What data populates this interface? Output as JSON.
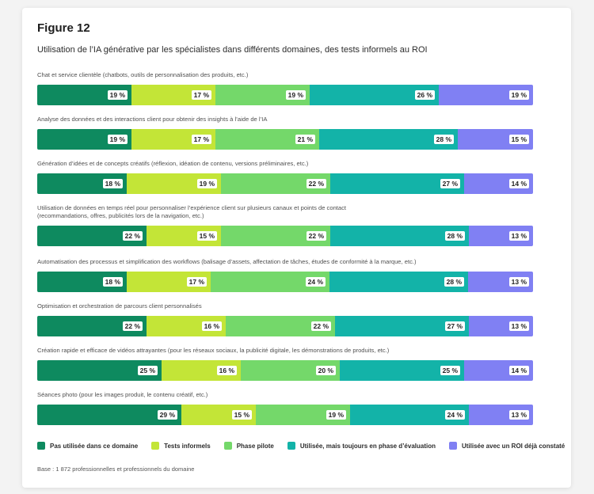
{
  "figure": {
    "title": "Figure 12",
    "subtitle": "Utilisation de l’IA générative par les spécialistes dans différents domaines, des tests informels au ROI",
    "footnote": "Base : 1 872 professionnelles et professionnels du domaine"
  },
  "colors": {
    "Pas utilisée dans ce domaine": "#0e8a5f",
    "Tests informels": "#c3e537",
    "Phase pilote": "#74d86a",
    "Utilisée, mais toujours en phase d’évaluation": "#13b3a8",
    "Utilisée avec un ROI déjà constaté": "#8080f3"
  },
  "chart_data": {
    "type": "bar",
    "orientation": "horizontal",
    "stacked": true,
    "unit": "%",
    "title": "Utilisation de l’IA générative par les spécialistes dans différents domaines, des tests informels au ROI",
    "legend_position": "bottom",
    "categories": [
      "Chat et service clientèle (chatbots, outils de personnalisation des produits, etc.)",
      "Analyse des données et des interactions client pour obtenir des insights à l’aide de l’IA",
      "Génération d’idées et de concepts créatifs (réflexion, idéation de contenu, versions préliminaires, etc.)",
      "Utilisation de données en temps réel pour personnaliser l’expérience client sur plusieurs canaux et points de contact (recommandations, offres, publicités lors de la navigation, etc.)",
      "Automatisation des processus et simplification des workflows (balisage d’assets, affectation de tâches, études de conformité à la marque, etc.)",
      "Optimisation et orchestration de parcours client personnalisés",
      "Création rapide et efficace de vidéos attrayantes (pour les réseaux sociaux, la publicité digitale, les démonstrations de produits, etc.)",
      "Séances photo (pour les images produit, le contenu créatif, etc.)"
    ],
    "category_lines": [
      [
        "Chat et service clientèle (chatbots, outils de personnalisation des produits, etc.)"
      ],
      [
        "Analyse des données et des interactions client pour obtenir des insights à l’aide de l’IA"
      ],
      [
        "Génération d’idées et de concepts créatifs (réflexion, idéation de contenu, versions préliminaires, etc.)"
      ],
      [
        "Utilisation de données en temps réel pour personnaliser l’expérience client sur plusieurs canaux et points de contact",
        "(recommandations, offres, publicités lors de la navigation, etc.)"
      ],
      [
        "Automatisation des processus et simplification des workflows (balisage d’assets, affectation de tâches, études de conformité à la marque, etc.)"
      ],
      [
        "Optimisation et orchestration de parcours client personnalisés"
      ],
      [
        "Création rapide et efficace de vidéos attrayantes (pour les réseaux sociaux, la publicité digitale, les démonstrations de produits, etc.)"
      ],
      [
        "Séances photo (pour les images produit, le contenu créatif, etc.)"
      ]
    ],
    "series": [
      {
        "name": "Pas utilisée dans ce domaine",
        "values": [
          19,
          19,
          18,
          22,
          18,
          22,
          25,
          29
        ]
      },
      {
        "name": "Tests informels",
        "values": [
          17,
          17,
          19,
          15,
          17,
          16,
          16,
          15
        ]
      },
      {
        "name": "Phase pilote",
        "values": [
          19,
          21,
          22,
          22,
          24,
          22,
          20,
          19
        ]
      },
      {
        "name": "Utilisée, mais toujours en phase d’évaluation",
        "values": [
          26,
          28,
          27,
          28,
          28,
          27,
          25,
          24
        ]
      },
      {
        "name": "Utilisée avec un ROI déjà constaté",
        "values": [
          19,
          15,
          14,
          13,
          13,
          13,
          14,
          13
        ]
      }
    ]
  }
}
